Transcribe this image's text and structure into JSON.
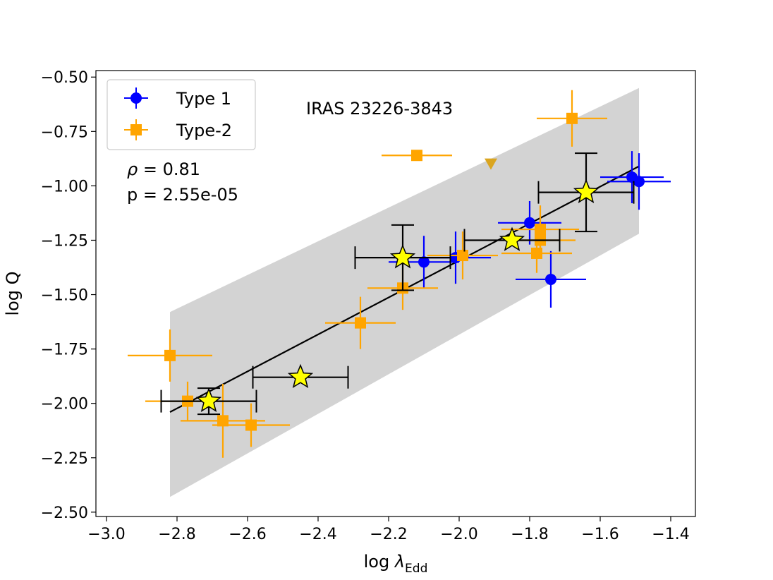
{
  "chart_data": {
    "type": "scatter",
    "title": "IRAS 23226-3843",
    "xlabel_main": "log ",
    "xlabel_lambda": "λ",
    "xlabel_sub": "Edd",
    "ylabel": "log Q",
    "xlim": [
      -3.03,
      -1.33
    ],
    "ylim": [
      -2.52,
      -0.47
    ],
    "xticks": [
      -3.0,
      -2.8,
      -2.6,
      -2.4,
      -2.2,
      -2.0,
      -1.8,
      -1.6,
      -1.4
    ],
    "xtick_labels": [
      "−3.0",
      "−2.8",
      "−2.6",
      "−2.4",
      "−2.2",
      "−2.0",
      "−1.8",
      "−1.6",
      "−1.4"
    ],
    "yticks": [
      -0.5,
      -0.75,
      -1.0,
      -1.25,
      -1.5,
      -1.75,
      -2.0,
      -2.25,
      -2.5
    ],
    "ytick_labels": [
      "−0.50",
      "−0.75",
      "−1.00",
      "−1.25",
      "−1.50",
      "−1.75",
      "−2.00",
      "−2.25",
      "−2.50"
    ],
    "annotations": {
      "rho_symbol": "ρ",
      "rho_text": " = 0.81",
      "p_text": "p = 2.55e-05"
    },
    "legend": {
      "placement": "upper-left",
      "entries": [
        {
          "label": "Type 1",
          "marker": "circle",
          "color": "#0000ff"
        },
        {
          "label": "Type-2",
          "marker": "square",
          "color": "#ffa500"
        }
      ]
    },
    "band": {
      "color": "#d3d3d3",
      "upper": [
        [
          -2.82,
          -1.58
        ],
        [
          -1.49,
          -0.55
        ]
      ],
      "lower": [
        [
          -2.82,
          -2.43
        ],
        [
          -1.49,
          -1.22
        ]
      ]
    },
    "fit_line": {
      "x": [
        -2.82,
        -1.49
      ],
      "y": [
        -2.04,
        -0.91
      ],
      "color": "#000000"
    },
    "series": [
      {
        "name": "Type 1",
        "marker": "circle",
        "color": "#0000ff",
        "points": [
          {
            "x": -2.1,
            "y": -1.35,
            "xerr": 0.1,
            "yerr": 0.12
          },
          {
            "x": -2.01,
            "y": -1.33,
            "xerr": 0.1,
            "yerr": 0.12
          },
          {
            "x": -1.8,
            "y": -1.17,
            "xerr": 0.09,
            "yerr": 0.1
          },
          {
            "x": -1.74,
            "y": -1.43,
            "xerr": 0.1,
            "yerr": 0.13
          },
          {
            "x": -1.51,
            "y": -0.96,
            "xerr": 0.09,
            "yerr": 0.12
          },
          {
            "x": -1.49,
            "y": -0.98,
            "xerr": 0.09,
            "yerr": 0.13
          }
        ]
      },
      {
        "name": "Type-2",
        "marker": "square",
        "color": "#ffa500",
        "points": [
          {
            "x": -2.82,
            "y": -1.78,
            "xerr": 0.12,
            "yerr": 0.12
          },
          {
            "x": -2.77,
            "y": -1.99,
            "xerr": 0.12,
            "yerr": 0.09
          },
          {
            "x": -2.67,
            "y": -2.08,
            "xerr": 0.12,
            "yerr": 0.17
          },
          {
            "x": -2.59,
            "y": -2.1,
            "xerr": 0.11,
            "yerr": 0.1
          },
          {
            "x": -2.28,
            "y": -1.63,
            "xerr": 0.1,
            "yerr": 0.12
          },
          {
            "x": -2.16,
            "y": -1.47,
            "xerr": 0.1,
            "yerr": 0.1
          },
          {
            "x": -2.12,
            "y": -0.86,
            "xerr": 0.1,
            "yerr": 0.0
          },
          {
            "x": -1.99,
            "y": -1.32,
            "xerr": 0.1,
            "yerr": 0.11
          },
          {
            "x": -1.78,
            "y": -1.31,
            "xerr": 0.1,
            "yerr": 0.09
          },
          {
            "x": -1.77,
            "y": -1.2,
            "xerr": 0.11,
            "yerr": 0.11
          },
          {
            "x": -1.77,
            "y": -1.25,
            "xerr": 0.1,
            "yerr": 0.08
          },
          {
            "x": -1.68,
            "y": -0.69,
            "xerr": 0.1,
            "yerr": 0.13
          }
        ]
      },
      {
        "name": "IRAS 23226-3843",
        "marker": "star",
        "color": "#ffff00",
        "errcolor": "#000000",
        "points": [
          {
            "x": -2.71,
            "y": -1.99,
            "xerr": 0.135,
            "yerr": 0.06
          },
          {
            "x": -2.45,
            "y": -1.88,
            "xerr": 0.135,
            "yerr": 0.0
          },
          {
            "x": -2.16,
            "y": -1.33,
            "xerr": 0.135,
            "yerr": 0.15
          },
          {
            "x": -1.85,
            "y": -1.25,
            "xerr": 0.135,
            "yerr": 0.0
          },
          {
            "x": -1.64,
            "y": -1.03,
            "xerr": 0.135,
            "yerr": 0.18
          }
        ]
      },
      {
        "name": "upper limit",
        "marker": "triangle-down",
        "color": "#daa520",
        "points": [
          {
            "x": -1.91,
            "y": -0.9
          }
        ]
      }
    ]
  }
}
